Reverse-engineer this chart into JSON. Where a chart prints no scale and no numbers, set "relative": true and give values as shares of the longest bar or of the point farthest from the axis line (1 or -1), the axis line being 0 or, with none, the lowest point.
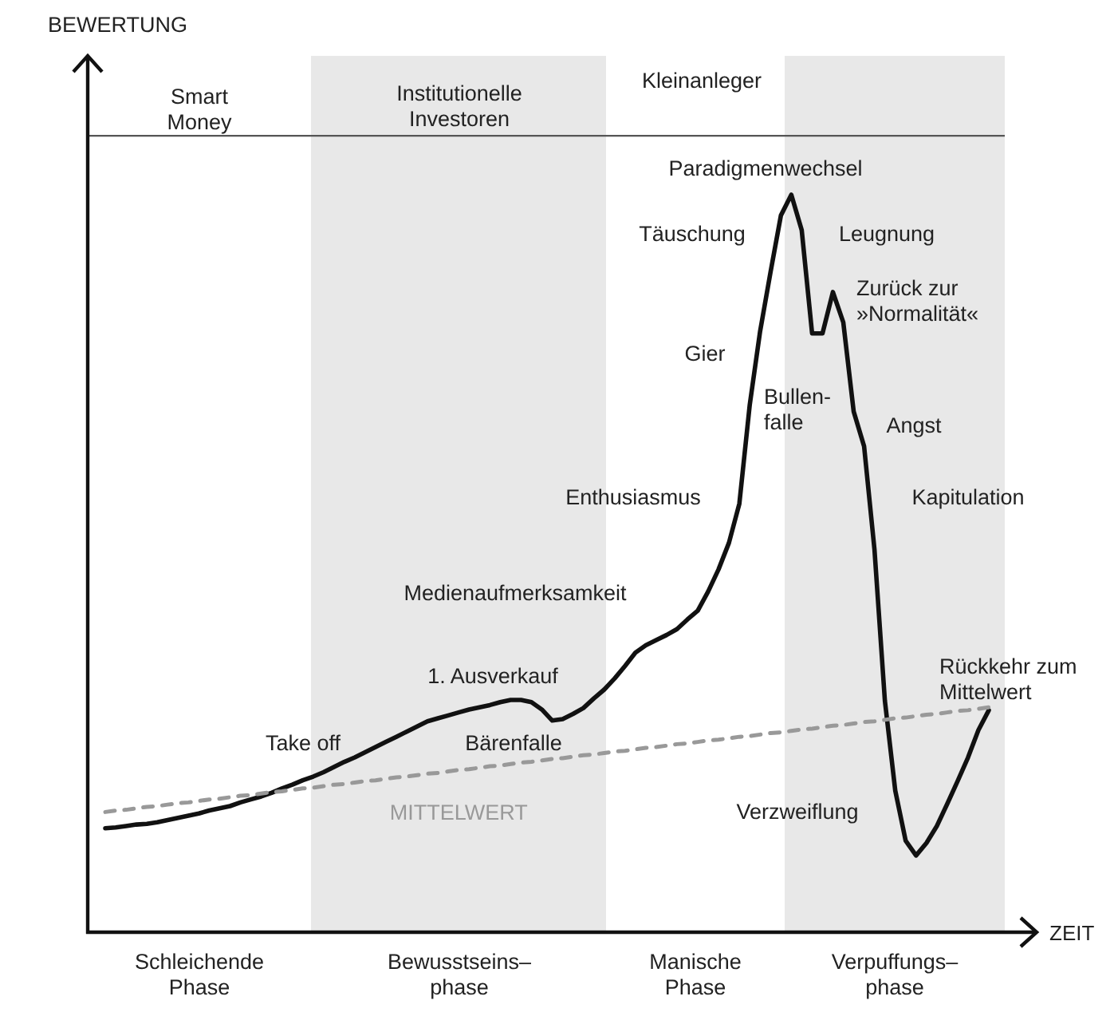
{
  "chart_data": {
    "type": "line",
    "relative": true,
    "xlabel": "ZEIT",
    "categories": [
      null,
      null,
      null,
      null,
      null,
      null,
      null,
      null,
      null,
      null,
      null,
      null,
      null,
      null,
      null,
      null,
      null,
      null,
      null,
      null,
      null,
      null,
      null,
      null,
      null,
      null,
      null,
      null,
      null,
      null,
      null,
      null,
      null,
      null,
      null,
      null,
      null,
      null,
      null,
      null,
      null,
      null,
      null,
      null,
      null,
      null,
      null,
      null,
      null,
      null,
      null,
      null,
      null,
      null,
      null,
      null,
      null,
      null,
      null,
      null,
      null,
      null,
      null,
      null,
      null,
      null,
      null,
      null,
      null,
      null,
      null,
      null,
      null,
      null,
      null,
      null,
      null,
      null,
      null,
      null,
      null,
      null,
      null,
      null,
      null,
      null
    ],
    "series": [
      {
        "color": "#111111",
        "line_style": "solid",
        "values": [
          0.141,
          0.142,
          0.144,
          0.146,
          0.147,
          0.149,
          0.152,
          0.155,
          0.158,
          0.161,
          0.165,
          0.168,
          0.171,
          0.176,
          0.18,
          0.184,
          0.189,
          0.195,
          0.2,
          0.206,
          0.211,
          0.217,
          0.224,
          0.231,
          0.237,
          0.244,
          0.251,
          0.258,
          0.265,
          0.272,
          0.279,
          0.286,
          0.29,
          0.294,
          0.298,
          0.302,
          0.305,
          0.308,
          0.312,
          0.315,
          0.315,
          0.312,
          0.302,
          0.287,
          0.289,
          0.296,
          0.304,
          0.317,
          0.329,
          0.344,
          0.361,
          0.379,
          0.389,
          0.396,
          0.403,
          0.411,
          0.424,
          0.436,
          0.462,
          0.492,
          0.528,
          0.581,
          0.715,
          0.815,
          0.895,
          0.972,
          1.0,
          0.952,
          0.812,
          0.812,
          0.868,
          0.827,
          0.706,
          0.659,
          0.519,
          0.314,
          0.192,
          0.124,
          0.104,
          0.121,
          0.144,
          0.174,
          0.205,
          0.237,
          0.274,
          0.301
        ]
      },
      {
        "name": "MITTELWERT",
        "color": "#999999",
        "line_style": "dashed",
        "values": [
          0.163,
          0.165,
          0.166,
          0.168,
          0.17,
          0.171,
          0.173,
          0.175,
          0.176,
          0.178,
          0.18,
          0.181,
          0.183,
          0.185,
          0.186,
          0.188,
          0.19,
          0.191,
          0.193,
          0.195,
          0.196,
          0.198,
          0.2,
          0.201,
          0.203,
          0.205,
          0.206,
          0.208,
          0.21,
          0.211,
          0.213,
          0.215,
          0.216,
          0.218,
          0.22,
          0.221,
          0.223,
          0.225,
          0.226,
          0.228,
          0.23,
          0.231,
          0.233,
          0.235,
          0.236,
          0.238,
          0.24,
          0.241,
          0.243,
          0.245,
          0.246,
          0.248,
          0.25,
          0.251,
          0.253,
          0.255,
          0.256,
          0.258,
          0.26,
          0.261,
          0.263,
          0.265,
          0.266,
          0.268,
          0.27,
          0.271,
          0.273,
          0.275,
          0.276,
          0.278,
          0.28,
          0.281,
          0.283,
          0.285,
          0.286,
          0.288,
          0.29,
          0.291,
          0.293,
          0.295,
          0.296,
          0.298,
          0.3,
          0.301,
          0.303,
          0.305
        ]
      }
    ],
    "ref_lines": [
      {
        "axis": "y",
        "value": 1.08,
        "label": null,
        "color": "#555555"
      }
    ],
    "annotations": [
      "Smart\nMoney",
      "Institutionelle\nInvestoren",
      "Kleinanleger",
      "Paradigmenwechsel",
      "Täuschung",
      "Leugnung",
      "Zurück zur\n»Normalität«",
      "Gier",
      "Bullen-\nfalle",
      "Angst",
      "Enthusiasmus",
      "Kapitulation",
      "Medienaufmerksamkeit",
      "1. Ausverkauf",
      "Take off",
      "Bärenfalle",
      "Rückkehr zum\nMittelwert",
      "Verzweiflung",
      "Schleichende\nPhase",
      "Bewusstseins–\nphase",
      "Manische\nPhase",
      "Verpuffungs–\nphase",
      "BEWERTUNG"
    ]
  }
}
